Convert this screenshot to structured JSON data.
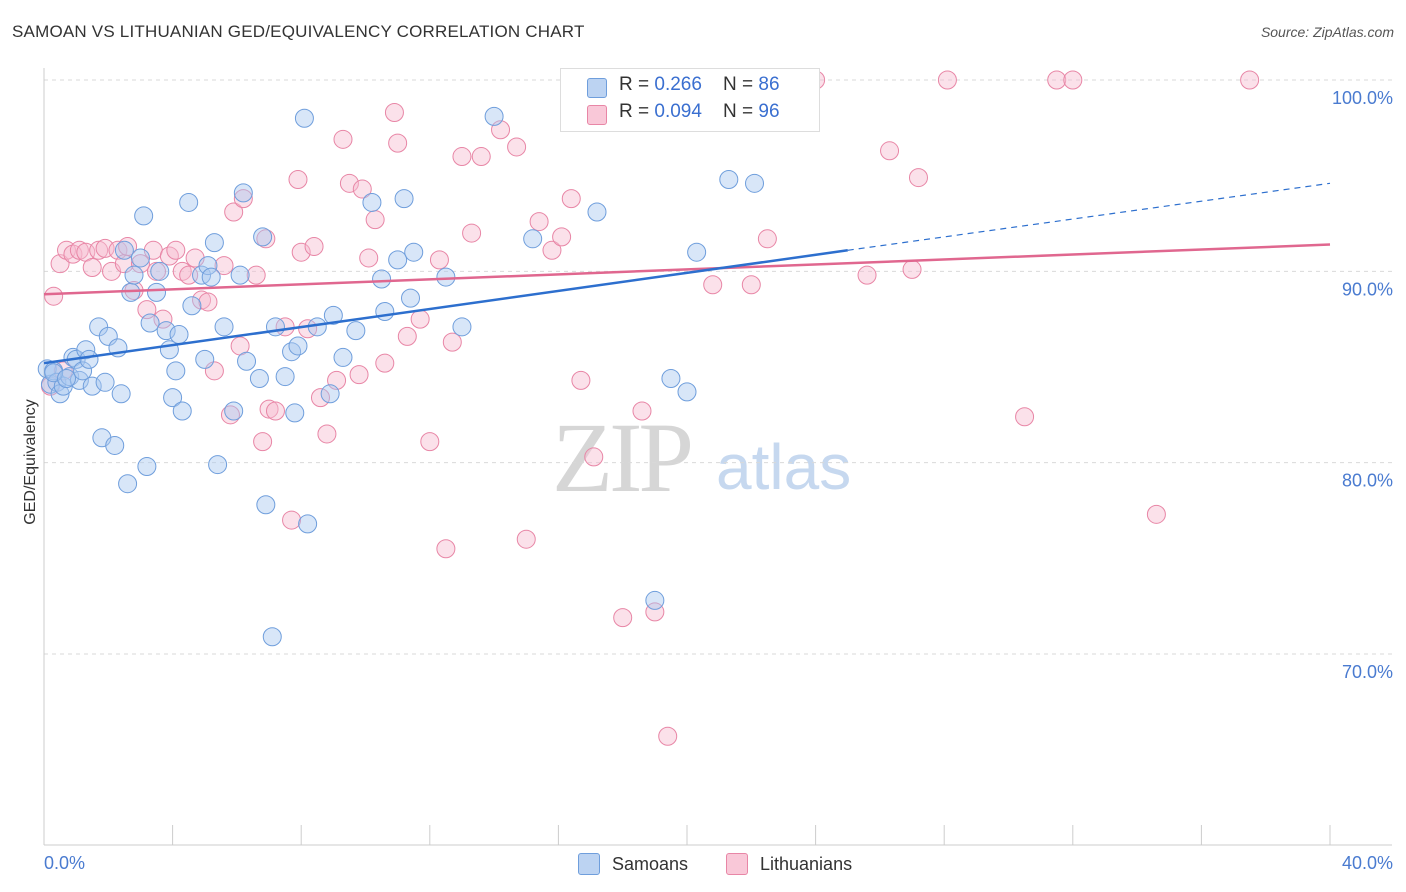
{
  "title": "SAMOAN VS LITHUANIAN GED/EQUIVALENCY CORRELATION CHART",
  "source": "Source: ZipAtlas.com",
  "legend": {
    "samoans": {
      "r_label": "R = ",
      "r_value": "0.266",
      "n_label": "N = ",
      "n_value": "86"
    },
    "lithuanians": {
      "r_label": "R = ",
      "r_value": "0.094",
      "n_label": "N = ",
      "n_value": "96"
    }
  },
  "bottom_legend": {
    "samoans": "Samoans",
    "lithuanians": "Lithuanians"
  },
  "watermark": {
    "zip": "ZIP",
    "atlas": "atlas"
  },
  "colors": {
    "samoans_fill": "#a9c8f0",
    "samoans_stroke": "#6f9edc",
    "samoans_line": "#2d6fce",
    "lithuanians_fill": "#f7bcd0",
    "lithuanians_stroke": "#e886a6",
    "lithuanians_line": "#e0678f",
    "grid": "#d9d9d9",
    "tick_text": "#4a7bd0"
  },
  "chart_data": {
    "type": "scatter",
    "title": "SAMOAN VS LITHUANIAN GED/EQUIVALENCY CORRELATION CHART",
    "xlabel": "",
    "ylabel": "GED/Equivalency",
    "xlim": [
      0,
      40
    ],
    "ylim": [
      60,
      100
    ],
    "x_tick_labels": [
      "0.0%",
      "40.0%"
    ],
    "y_tick_labels": [
      "70.0%",
      "80.0%",
      "90.0%",
      "100.0%"
    ],
    "y_ticks": [
      70,
      80,
      90,
      100
    ],
    "grid": true,
    "series": [
      {
        "name": "Samoans",
        "trend": {
          "x_start": 0,
          "y_start": 85.2,
          "x_end": 25.0,
          "y_end": 91.1,
          "x_dash_end": 40.0,
          "y_dash_end": 94.6
        },
        "points": [
          [
            0.1,
            84.9
          ],
          [
            0.2,
            84.1
          ],
          [
            0.3,
            84.8
          ],
          [
            0.4,
            84.2
          ],
          [
            0.5,
            83.6
          ],
          [
            0.6,
            84.0
          ],
          [
            0.8,
            84.5
          ],
          [
            0.9,
            85.5
          ],
          [
            1.0,
            85.4
          ],
          [
            1.1,
            84.3
          ],
          [
            1.2,
            84.8
          ],
          [
            1.3,
            85.9
          ],
          [
            1.5,
            84.0
          ],
          [
            1.7,
            87.1
          ],
          [
            1.8,
            81.3
          ],
          [
            1.9,
            84.2
          ],
          [
            2.0,
            86.6
          ],
          [
            2.2,
            80.9
          ],
          [
            2.3,
            86.0
          ],
          [
            2.4,
            83.6
          ],
          [
            2.6,
            78.9
          ],
          [
            2.7,
            88.9
          ],
          [
            2.8,
            89.8
          ],
          [
            3.1,
            92.9
          ],
          [
            3.2,
            79.8
          ],
          [
            3.3,
            87.3
          ],
          [
            3.5,
            88.9
          ],
          [
            3.6,
            90.0
          ],
          [
            3.8,
            86.9
          ],
          [
            3.9,
            85.9
          ],
          [
            4.0,
            83.4
          ],
          [
            4.1,
            84.8
          ],
          [
            4.2,
            86.7
          ],
          [
            4.3,
            82.7
          ],
          [
            4.5,
            93.6
          ],
          [
            4.6,
            88.2
          ],
          [
            4.9,
            89.8
          ],
          [
            5.0,
            85.4
          ],
          [
            5.1,
            90.3
          ],
          [
            5.2,
            89.7
          ],
          [
            5.3,
            91.5
          ],
          [
            5.4,
            79.9
          ],
          [
            5.6,
            87.1
          ],
          [
            5.9,
            82.7
          ],
          [
            6.1,
            89.8
          ],
          [
            6.2,
            94.1
          ],
          [
            6.3,
            85.3
          ],
          [
            6.7,
            84.4
          ],
          [
            6.8,
            91.8
          ],
          [
            6.9,
            77.8
          ],
          [
            7.1,
            70.9
          ],
          [
            7.2,
            87.1
          ],
          [
            7.5,
            84.5
          ],
          [
            7.7,
            85.8
          ],
          [
            7.8,
            82.6
          ],
          [
            7.9,
            86.1
          ],
          [
            8.2,
            76.8
          ],
          [
            8.1,
            98.0
          ],
          [
            8.5,
            87.1
          ],
          [
            8.9,
            83.6
          ],
          [
            9.0,
            87.7
          ],
          [
            9.3,
            85.5
          ],
          [
            9.7,
            86.9
          ],
          [
            10.2,
            93.6
          ],
          [
            10.5,
            89.6
          ],
          [
            10.6,
            87.9
          ],
          [
            11.0,
            90.6
          ],
          [
            11.2,
            93.8
          ],
          [
            11.4,
            88.6
          ],
          [
            11.5,
            91.0
          ],
          [
            12.5,
            89.7
          ],
          [
            13.0,
            87.1
          ],
          [
            14.0,
            98.1
          ],
          [
            15.2,
            91.7
          ],
          [
            17.2,
            93.1
          ],
          [
            19.0,
            72.8
          ],
          [
            19.5,
            84.4
          ],
          [
            20.0,
            83.7
          ],
          [
            20.3,
            91.0
          ],
          [
            21.3,
            94.8
          ],
          [
            22.1,
            94.6
          ],
          [
            0.3,
            84.7
          ],
          [
            0.7,
            84.4
          ],
          [
            1.4,
            85.4
          ],
          [
            2.5,
            91.1
          ],
          [
            3.0,
            90.7
          ]
        ]
      },
      {
        "name": "Lithuanians",
        "trend": {
          "x_start": 0,
          "y_start": 88.8,
          "x_end": 40.0,
          "y_end": 91.4
        },
        "points": [
          [
            0.2,
            84.0
          ],
          [
            0.3,
            88.7
          ],
          [
            0.5,
            90.4
          ],
          [
            0.7,
            91.1
          ],
          [
            0.9,
            90.9
          ],
          [
            1.1,
            91.1
          ],
          [
            1.3,
            91.0
          ],
          [
            1.5,
            90.2
          ],
          [
            1.7,
            91.1
          ],
          [
            1.9,
            91.2
          ],
          [
            2.1,
            90.0
          ],
          [
            2.3,
            91.1
          ],
          [
            2.5,
            90.4
          ],
          [
            2.6,
            91.3
          ],
          [
            2.8,
            89.0
          ],
          [
            3.0,
            90.4
          ],
          [
            3.2,
            88.0
          ],
          [
            3.4,
            91.1
          ],
          [
            3.5,
            90.0
          ],
          [
            3.7,
            87.5
          ],
          [
            3.9,
            90.8
          ],
          [
            4.1,
            91.1
          ],
          [
            4.3,
            90.0
          ],
          [
            4.5,
            89.8
          ],
          [
            4.7,
            90.7
          ],
          [
            4.9,
            88.5
          ],
          [
            5.1,
            88.4
          ],
          [
            5.3,
            84.8
          ],
          [
            5.6,
            90.3
          ],
          [
            5.8,
            82.5
          ],
          [
            5.9,
            93.1
          ],
          [
            6.1,
            86.1
          ],
          [
            6.2,
            93.8
          ],
          [
            6.6,
            89.8
          ],
          [
            6.8,
            81.1
          ],
          [
            6.9,
            91.7
          ],
          [
            7.0,
            82.8
          ],
          [
            7.2,
            82.7
          ],
          [
            7.5,
            87.1
          ],
          [
            7.7,
            77.0
          ],
          [
            7.9,
            94.8
          ],
          [
            8.0,
            91.0
          ],
          [
            8.2,
            87.0
          ],
          [
            8.4,
            91.3
          ],
          [
            8.6,
            83.4
          ],
          [
            8.8,
            81.5
          ],
          [
            9.1,
            84.3
          ],
          [
            9.3,
            96.9
          ],
          [
            9.5,
            94.6
          ],
          [
            9.8,
            84.6
          ],
          [
            9.9,
            94.3
          ],
          [
            10.1,
            90.7
          ],
          [
            10.3,
            92.7
          ],
          [
            10.6,
            85.2
          ],
          [
            10.9,
            98.3
          ],
          [
            11.0,
            96.7
          ],
          [
            11.3,
            86.6
          ],
          [
            11.7,
            87.5
          ],
          [
            12.0,
            81.1
          ],
          [
            12.3,
            90.6
          ],
          [
            12.7,
            86.3
          ],
          [
            12.5,
            75.5
          ],
          [
            13.0,
            96.0
          ],
          [
            13.3,
            92.0
          ],
          [
            13.6,
            96.0
          ],
          [
            14.2,
            97.4
          ],
          [
            14.7,
            96.5
          ],
          [
            15.0,
            76.0
          ],
          [
            15.4,
            92.6
          ],
          [
            15.8,
            91.1
          ],
          [
            16.1,
            91.8
          ],
          [
            16.4,
            93.8
          ],
          [
            16.7,
            84.3
          ],
          [
            17.1,
            80.3
          ],
          [
            18.0,
            71.9
          ],
          [
            18.6,
            82.7
          ],
          [
            19.0,
            72.2
          ],
          [
            19.4,
            65.7
          ],
          [
            20.8,
            89.3
          ],
          [
            21.5,
            98.0
          ],
          [
            22.0,
            89.3
          ],
          [
            22.5,
            91.7
          ],
          [
            23.3,
            100.0
          ],
          [
            24.0,
            100.0
          ],
          [
            25.6,
            89.8
          ],
          [
            26.3,
            96.3
          ],
          [
            27.0,
            90.1
          ],
          [
            27.2,
            94.9
          ],
          [
            28.1,
            100.0
          ],
          [
            30.5,
            82.4
          ],
          [
            31.5,
            100.0
          ],
          [
            32.0,
            100.0
          ],
          [
            34.6,
            77.3
          ],
          [
            37.5,
            100.0
          ],
          [
            22.8,
            99.0
          ],
          [
            0.6,
            84.8
          ]
        ]
      }
    ]
  }
}
